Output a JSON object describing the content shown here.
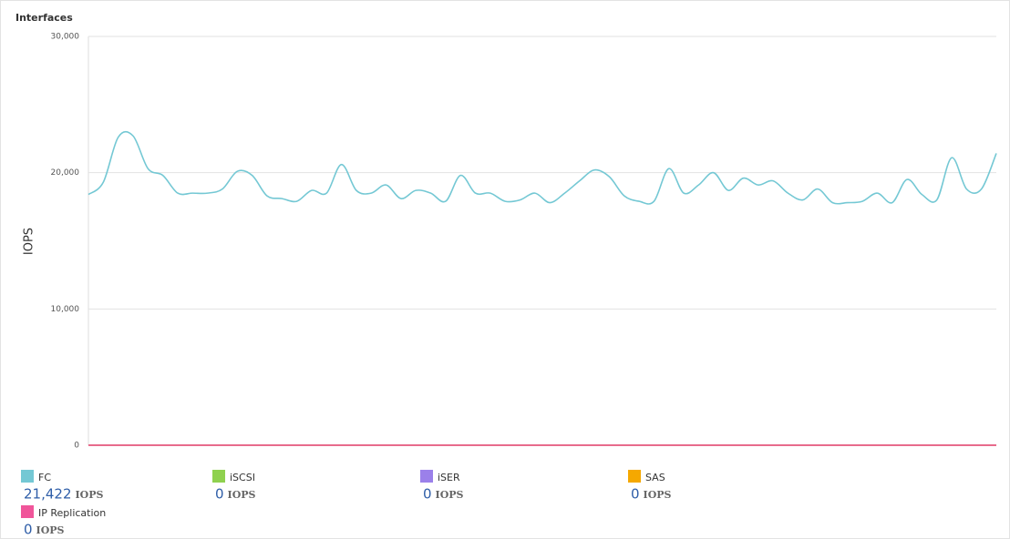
{
  "chart_data": {
    "type": "line",
    "title": "Interfaces",
    "y_label": "IOPS",
    "unit": "IOPS",
    "ylim": [
      0,
      30000
    ],
    "yticks": [
      {
        "value": 0,
        "label": "0"
      },
      {
        "value": 10000,
        "label": "10,000"
      },
      {
        "value": 20000,
        "label": "20,000"
      },
      {
        "value": 30000,
        "label": "30,000"
      }
    ],
    "grid": true,
    "series": [
      {
        "name": "FC",
        "color": "#74c8d4",
        "latest": 21422,
        "latest_label": "21,422",
        "values": [
          18400,
          19300,
          22600,
          22700,
          20300,
          19800,
          18500,
          18500,
          18500,
          18800,
          20100,
          19800,
          18300,
          18100,
          17900,
          18700,
          18500,
          20600,
          18700,
          18500,
          19100,
          18100,
          18700,
          18500,
          17900,
          19800,
          18500,
          18500,
          17900,
          18000,
          18500,
          17800,
          18500,
          19400,
          20200,
          19700,
          18300,
          17900,
          17900,
          20300,
          18500,
          19100,
          20000,
          18700,
          19600,
          19100,
          19400,
          18500,
          18000,
          18800,
          17800,
          17800,
          17900,
          18500,
          17800,
          19500,
          18400,
          18000,
          21100,
          18800,
          18800,
          21422
        ]
      },
      {
        "name": "iSCSI",
        "color": "#8fd14f",
        "latest": 0,
        "values": [
          0,
          0,
          0,
          0,
          0,
          0,
          0,
          0,
          0,
          0,
          0,
          0,
          0,
          0,
          0,
          0,
          0,
          0,
          0,
          0,
          0,
          0,
          0,
          0,
          0,
          0,
          0,
          0,
          0,
          0,
          0,
          0,
          0,
          0,
          0,
          0,
          0,
          0,
          0,
          0,
          0,
          0,
          0,
          0,
          0,
          0,
          0,
          0,
          0,
          0,
          0,
          0,
          0,
          0,
          0,
          0,
          0,
          0,
          0,
          0,
          0,
          0
        ]
      },
      {
        "name": "iSER",
        "color": "#9b80ea",
        "latest": 0,
        "values": [
          0,
          0,
          0,
          0,
          0,
          0,
          0,
          0,
          0,
          0,
          0,
          0,
          0,
          0,
          0,
          0,
          0,
          0,
          0,
          0,
          0,
          0,
          0,
          0,
          0,
          0,
          0,
          0,
          0,
          0,
          0,
          0,
          0,
          0,
          0,
          0,
          0,
          0,
          0,
          0,
          0,
          0,
          0,
          0,
          0,
          0,
          0,
          0,
          0,
          0,
          0,
          0,
          0,
          0,
          0,
          0,
          0,
          0,
          0,
          0,
          0,
          0
        ]
      },
      {
        "name": "SAS",
        "color": "#f5a800",
        "latest": 0,
        "values": [
          0,
          0,
          0,
          0,
          0,
          0,
          0,
          0,
          0,
          0,
          0,
          0,
          0,
          0,
          0,
          0,
          0,
          0,
          0,
          0,
          0,
          0,
          0,
          0,
          0,
          0,
          0,
          0,
          0,
          0,
          0,
          0,
          0,
          0,
          0,
          0,
          0,
          0,
          0,
          0,
          0,
          0,
          0,
          0,
          0,
          0,
          0,
          0,
          0,
          0,
          0,
          0,
          0,
          0,
          0,
          0,
          0,
          0,
          0,
          0,
          0,
          0
        ]
      },
      {
        "name": "IP Replication",
        "color": "#f0559a",
        "latest": 0,
        "values": [
          0,
          0,
          0,
          0,
          0,
          0,
          0,
          0,
          0,
          0,
          0,
          0,
          0,
          0,
          0,
          0,
          0,
          0,
          0,
          0,
          0,
          0,
          0,
          0,
          0,
          0,
          0,
          0,
          0,
          0,
          0,
          0,
          0,
          0,
          0,
          0,
          0,
          0,
          0,
          0,
          0,
          0,
          0,
          0,
          0,
          0,
          0,
          0,
          0,
          0,
          0,
          0,
          0,
          0,
          0,
          0,
          0,
          0,
          0,
          0,
          0,
          0
        ]
      }
    ]
  }
}
